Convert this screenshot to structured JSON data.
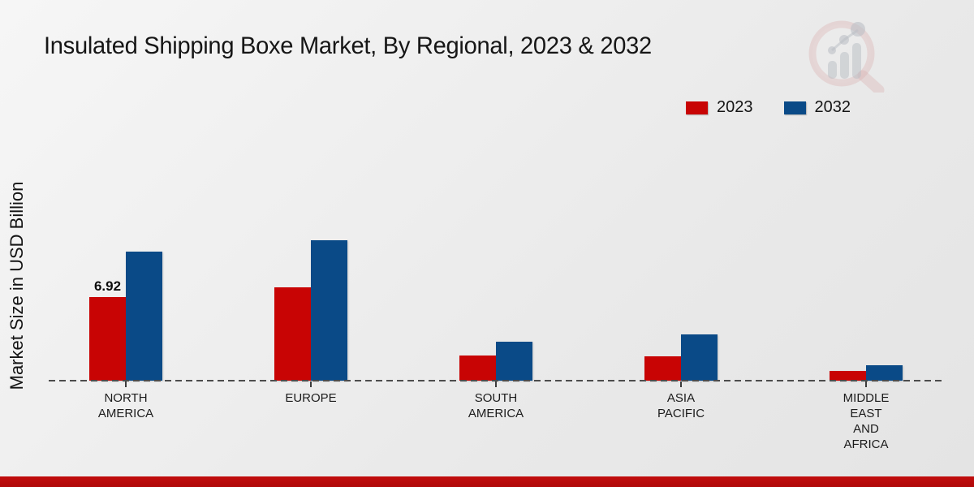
{
  "page": {
    "title": "Insulated Shipping Boxe Market, By Regional, 2023 & 2032",
    "y_axis_label": "Market Size in USD Billion"
  },
  "legend": {
    "items": [
      {
        "label": "2023",
        "color": "#c80404"
      },
      {
        "label": "2032",
        "color": "#0a4a87"
      }
    ]
  },
  "chart_data": {
    "type": "bar",
    "title": "Insulated Shipping Boxe Market, By Regional, 2023 & 2032",
    "xlabel": "",
    "ylabel": "Market Size in USD Billion",
    "categories": [
      "NORTH AMERICA",
      "EUROPE",
      "SOUTH AMERICA",
      "ASIA PACIFIC",
      "MIDDLE EAST AND AFRICA"
    ],
    "series": [
      {
        "name": "2023",
        "color": "#c80404",
        "values": [
          6.92,
          7.7,
          2.1,
          2.0,
          0.8
        ]
      },
      {
        "name": "2032",
        "color": "#0a4a87",
        "values": [
          10.7,
          11.6,
          3.2,
          3.8,
          1.3
        ]
      }
    ],
    "annotations": [
      {
        "series_index": 0,
        "category_index": 0,
        "text": "6.92"
      }
    ],
    "ylim": [
      0,
      12
    ],
    "grid": false,
    "baseline_style": "dashed",
    "legend_position": "top-right"
  },
  "colors": {
    "footer_accent": "#b70c0c",
    "baseline": "#4d4d4d",
    "background": "#ededed"
  }
}
